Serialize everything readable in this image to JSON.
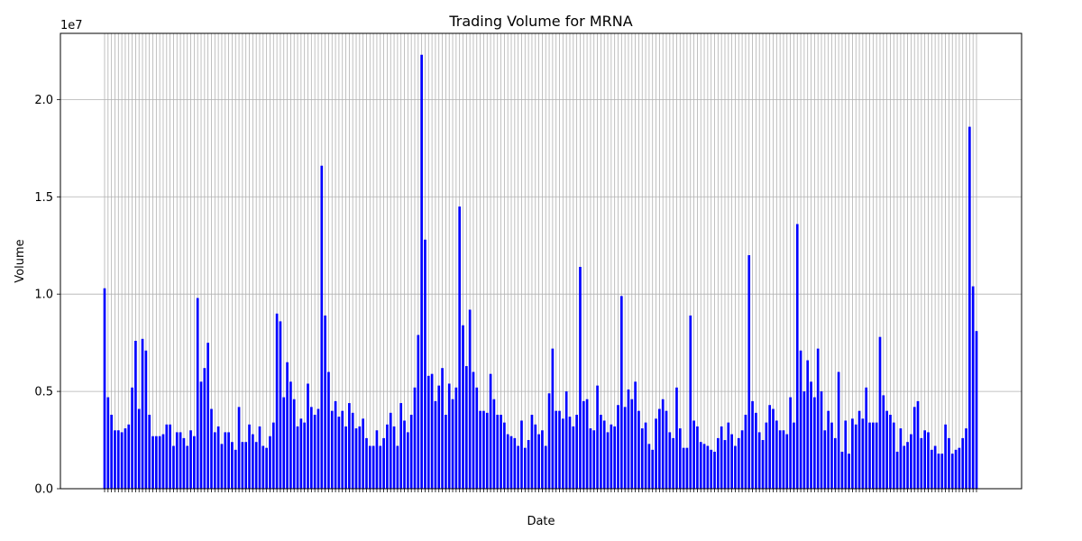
{
  "chart_data": {
    "type": "bar",
    "title": "Trading Volume for MRNA",
    "xlabel": "Date",
    "ylabel": "Volume",
    "offset_label": "1e7",
    "y_ticks": [
      0.0,
      0.5,
      1.0,
      1.5,
      2.0
    ],
    "y_tick_labels": [
      "0.0",
      "0.5",
      "1.0",
      "1.5",
      "2.0"
    ],
    "ylim": [
      0,
      2.34
    ],
    "grid": true,
    "bar_color": "#0000ff",
    "grid_color": "#b0b0b0",
    "series": [
      {
        "values": [
          1.03,
          0.47,
          0.38,
          0.3,
          0.3,
          0.29,
          0.31,
          0.33,
          0.52,
          0.76,
          0.41,
          0.77,
          0.71,
          0.38,
          0.27,
          0.27,
          0.27,
          0.28,
          0.33,
          0.33,
          0.22,
          0.29,
          0.29,
          0.26,
          0.22,
          0.3,
          0.27,
          0.98,
          0.55,
          0.62,
          0.75,
          0.41,
          0.29,
          0.32,
          0.23,
          0.29,
          0.29,
          0.24,
          0.2,
          0.42,
          0.24,
          0.24,
          0.33,
          0.28,
          0.24,
          0.32,
          0.22,
          0.21,
          0.27,
          0.34,
          0.9,
          0.86,
          0.47,
          0.65,
          0.55,
          0.46,
          0.32,
          0.36,
          0.34,
          0.54,
          0.42,
          0.38,
          0.41,
          1.66,
          0.89,
          0.6,
          0.4,
          0.45,
          0.37,
          0.4,
          0.32,
          0.44,
          0.39,
          0.31,
          0.32,
          0.36,
          0.26,
          0.22,
          0.22,
          0.3,
          0.22,
          0.26,
          0.33,
          0.39,
          0.32,
          0.22,
          0.44,
          0.35,
          0.29,
          0.38,
          0.52,
          0.79,
          2.23,
          1.28,
          0.58,
          0.59,
          0.45,
          0.53,
          0.62,
          0.38,
          0.54,
          0.46,
          0.52,
          1.45,
          0.84,
          0.63,
          0.92,
          0.6,
          0.52,
          0.4,
          0.4,
          0.39,
          0.59,
          0.46,
          0.38,
          0.38,
          0.34,
          0.28,
          0.27,
          0.26,
          0.22,
          0.35,
          0.21,
          0.25,
          0.38,
          0.33,
          0.28,
          0.3,
          0.22,
          0.49,
          0.72,
          0.4,
          0.4,
          0.36,
          0.5,
          0.37,
          0.32,
          0.38,
          1.14,
          0.45,
          0.46,
          0.31,
          0.3,
          0.53,
          0.38,
          0.35,
          0.29,
          0.33,
          0.32,
          0.43,
          0.99,
          0.42,
          0.51,
          0.46,
          0.55,
          0.4,
          0.31,
          0.34,
          0.23,
          0.2,
          0.36,
          0.41,
          0.46,
          0.4,
          0.29,
          0.26,
          0.52,
          0.31,
          0.21,
          0.21,
          0.89,
          0.35,
          0.32,
          0.24,
          0.23,
          0.22,
          0.2,
          0.19,
          0.26,
          0.32,
          0.25,
          0.34,
          0.28,
          0.22,
          0.26,
          0.3,
          0.38,
          1.2,
          0.45,
          0.39,
          0.29,
          0.25,
          0.34,
          0.43,
          0.41,
          0.35,
          0.3,
          0.3,
          0.28,
          0.47,
          0.34,
          1.36,
          0.71,
          0.5,
          0.66,
          0.55,
          0.47,
          0.72,
          0.5,
          0.3,
          0.4,
          0.34,
          0.26,
          0.6,
          0.19,
          0.35,
          0.18,
          0.36,
          0.33,
          0.4,
          0.36,
          0.52,
          0.34,
          0.34,
          0.34,
          0.78,
          0.48,
          0.4,
          0.38,
          0.34,
          0.19,
          0.31,
          0.22,
          0.24,
          0.28,
          0.42,
          0.45,
          0.26,
          0.3,
          0.29,
          0.2,
          0.22,
          0.18,
          0.18,
          0.33,
          0.26,
          0.18,
          0.2,
          0.21,
          0.26,
          0.31,
          1.86,
          1.04,
          0.81
        ]
      }
    ]
  }
}
